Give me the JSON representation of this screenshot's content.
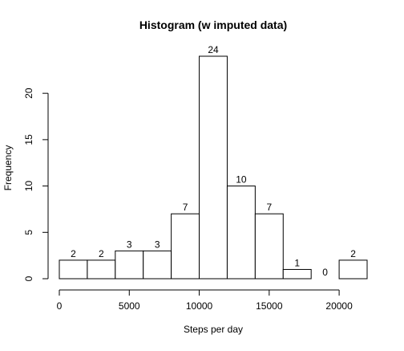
{
  "chart_data": {
    "type": "bar",
    "title": "Histogram (w imputed data)",
    "xlabel": "Steps per day",
    "ylabel": "Frequency",
    "bin_edges": [
      0,
      2000,
      4000,
      6000,
      8000,
      10000,
      12000,
      14000,
      16000,
      18000,
      20000,
      22000
    ],
    "values": [
      2,
      2,
      3,
      3,
      7,
      24,
      10,
      7,
      1,
      0,
      2
    ],
    "data_labels": [
      "2",
      "2",
      "3",
      "3",
      "7",
      "24",
      "10",
      "7",
      "1",
      "0",
      "2"
    ],
    "xlim": [
      0,
      22000
    ],
    "ylim": [
      0,
      24
    ],
    "x_ticks": [
      0,
      5000,
      10000,
      15000,
      20000
    ],
    "x_tick_labels": [
      "0",
      "5000",
      "10000",
      "15000",
      "20000"
    ],
    "y_ticks": [
      0,
      5,
      10,
      15,
      20
    ],
    "y_tick_labels": [
      "0",
      "5",
      "10",
      "15",
      "20"
    ],
    "grid": false,
    "bar_fill": "#ffffff",
    "bar_stroke": "#000000"
  }
}
